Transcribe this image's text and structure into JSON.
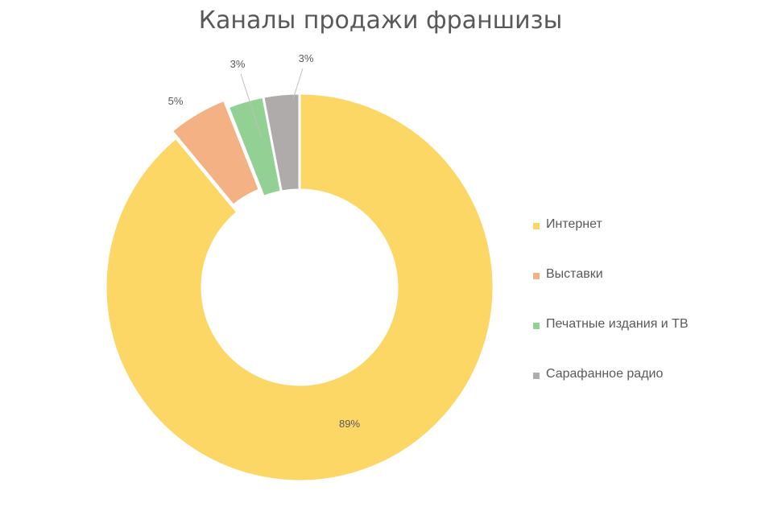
{
  "chart_data": {
    "type": "pie",
    "title": "Каналы продажи франшизы",
    "categories": [
      "Интернет",
      "Выставки",
      "Печатные издания и ТВ",
      "Сарафанное радио"
    ],
    "values": [
      89,
      5,
      3,
      3
    ],
    "data_labels": [
      "89%",
      "5%",
      "3%",
      "3%"
    ],
    "colors": [
      "#FCD766",
      "#F4B183",
      "#92D094",
      "#B0ABAB"
    ],
    "legend": "right",
    "donut": true
  }
}
